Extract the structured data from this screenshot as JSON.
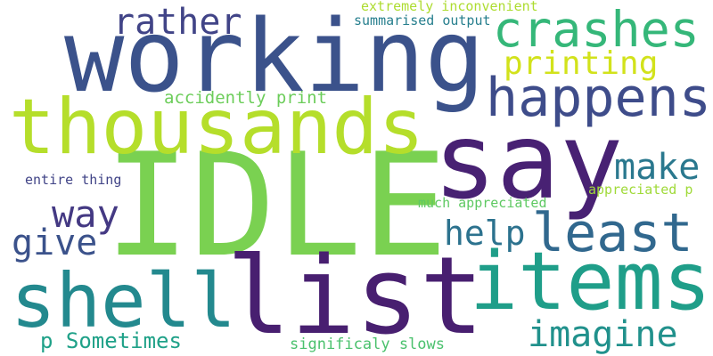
{
  "words": [
    {
      "text": "working",
      "color": "#3b528b"
    },
    {
      "text": "IDLE",
      "color": "#7ad151"
    },
    {
      "text": "thousands",
      "color": "#b5de2b"
    },
    {
      "text": "say",
      "color": "#482173"
    },
    {
      "text": "list",
      "color": "#481f70"
    },
    {
      "text": "shell",
      "color": "#23898e"
    },
    {
      "text": "items",
      "color": "#1f9e89"
    },
    {
      "text": "happens",
      "color": "#3e4c8a"
    },
    {
      "text": "crashes",
      "color": "#35b779"
    },
    {
      "text": "rather",
      "color": "#414487"
    },
    {
      "text": "printing",
      "color": "#d2e21b"
    },
    {
      "text": "least",
      "color": "#31688e"
    },
    {
      "text": "make",
      "color": "#2a788e"
    },
    {
      "text": "way",
      "color": "#443983"
    },
    {
      "text": "give",
      "color": "#3b528b"
    },
    {
      "text": "help",
      "color": "#2c728e"
    },
    {
      "text": "imagine",
      "color": "#21918c"
    },
    {
      "text": "p Sometimes",
      "color": "#1fa188"
    },
    {
      "text": "accidently print",
      "color": "#6ccd5a"
    },
    {
      "text": "extremely inconvenient",
      "color": "#addc30"
    },
    {
      "text": "summarised output",
      "color": "#277f8e"
    },
    {
      "text": "entire thing",
      "color": "#414487"
    },
    {
      "text": "much appreciated",
      "color": "#5ec962"
    },
    {
      "text": "appreciated p",
      "color": "#a0da39"
    },
    {
      "text": "significaly slows",
      "color": "#4ac16d"
    }
  ]
}
